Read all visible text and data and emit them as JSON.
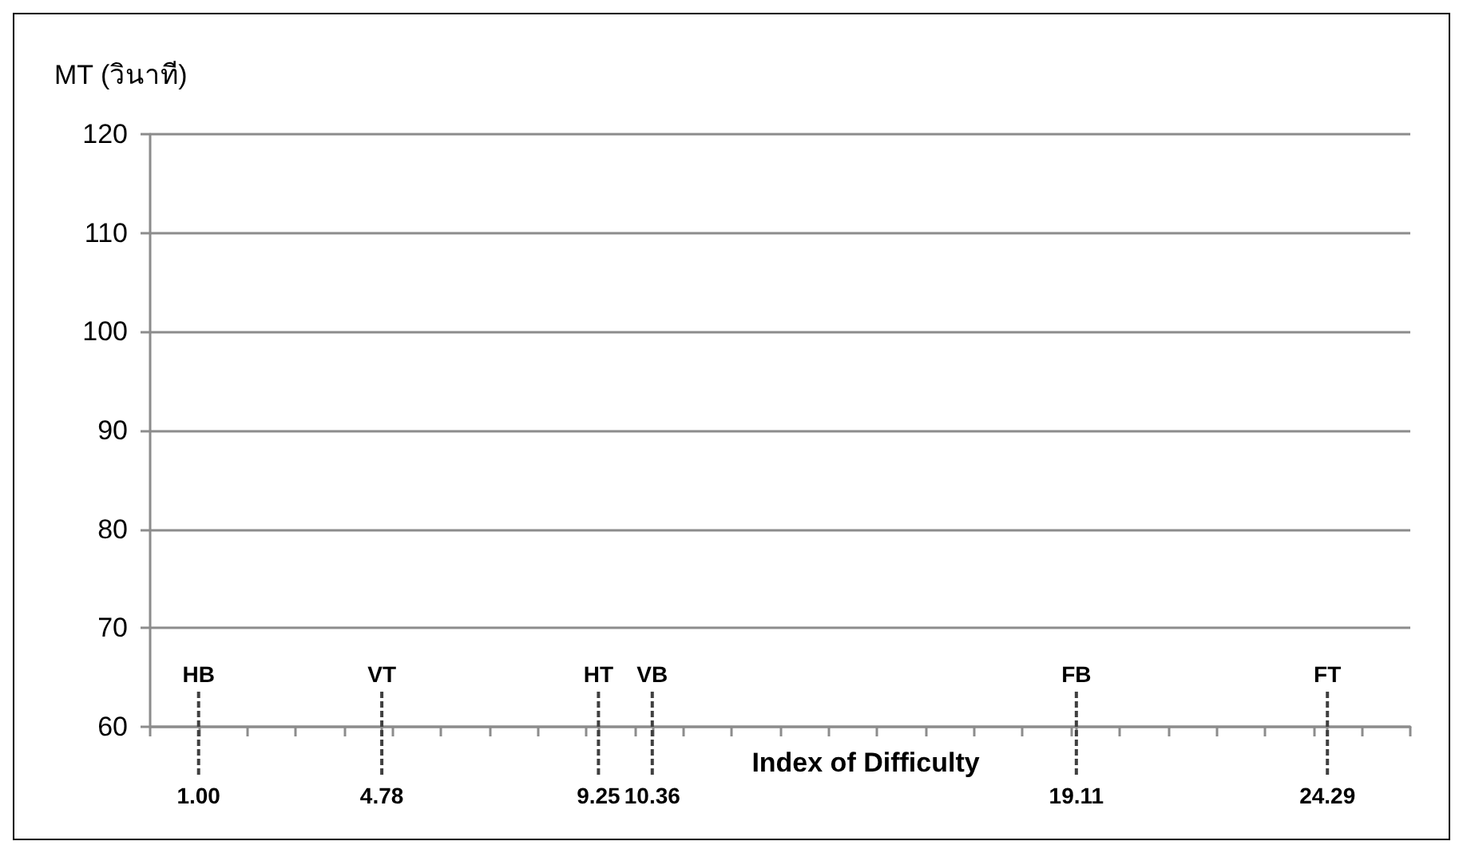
{
  "chart_data": {
    "type": "scatter",
    "xlabel": "Index of Difficulty",
    "ylabel": "MT (วินาที)",
    "xlim": [
      0,
      26
    ],
    "xticks": [
      {
        "value": 0,
        "label": null
      },
      {
        "value": 1,
        "label": "1.00"
      },
      {
        "value": 2,
        "label": null
      },
      {
        "value": 3,
        "label": null
      },
      {
        "value": 4,
        "label": null
      },
      {
        "value": 4.78,
        "label": "4.78"
      },
      {
        "value": 5,
        "label": null
      },
      {
        "value": 6,
        "label": null
      },
      {
        "value": 7,
        "label": null
      },
      {
        "value": 8,
        "label": null
      },
      {
        "value": 9,
        "label": null
      },
      {
        "value": 9.25,
        "label": "9.25"
      },
      {
        "value": 10,
        "label": null
      },
      {
        "value": 10.36,
        "label": "10.36"
      },
      {
        "value": 11,
        "label": null
      },
      {
        "value": 12,
        "label": null
      },
      {
        "value": 13,
        "label": null
      },
      {
        "value": 14,
        "label": null
      },
      {
        "value": 15,
        "label": null
      },
      {
        "value": 16,
        "label": null
      },
      {
        "value": 17,
        "label": null
      },
      {
        "value": 18,
        "label": null
      },
      {
        "value": 19,
        "label": null
      },
      {
        "value": 19.11,
        "label": "19.11"
      },
      {
        "value": 20,
        "label": null
      },
      {
        "value": 21,
        "label": null
      },
      {
        "value": 22,
        "label": null
      },
      {
        "value": 23,
        "label": null
      },
      {
        "value": 24,
        "label": null
      },
      {
        "value": 24.29,
        "label": "24.29"
      },
      {
        "value": 25,
        "label": null
      },
      {
        "value": 26,
        "label": null
      }
    ],
    "ylim": [
      60,
      120
    ],
    "yticks": [
      60,
      70,
      80,
      90,
      100,
      110,
      120
    ],
    "grid": "y",
    "ref_lines": [
      {
        "axis": "x",
        "value": 1.0,
        "label": "HB",
        "line_style": "dashed",
        "color": "#404040"
      },
      {
        "axis": "x",
        "value": 4.78,
        "label": "VT",
        "line_style": "dashed",
        "color": "#404040"
      },
      {
        "axis": "x",
        "value": 9.25,
        "label": "HT",
        "line_style": "dashed",
        "color": "#404040"
      },
      {
        "axis": "x",
        "value": 10.36,
        "label": "VB",
        "line_style": "dashed",
        "color": "#404040"
      },
      {
        "axis": "x",
        "value": 19.11,
        "label": "FB",
        "line_style": "dashed",
        "color": "#404040"
      },
      {
        "axis": "x",
        "value": 24.29,
        "label": "FT",
        "line_style": "dashed",
        "color": "#404040"
      }
    ]
  }
}
